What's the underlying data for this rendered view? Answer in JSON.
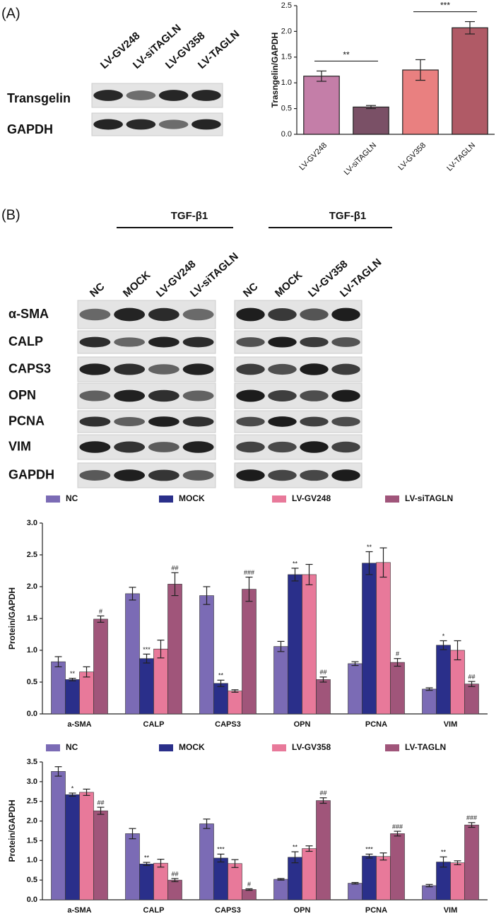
{
  "panel_labels": [
    "(A)",
    "(B)"
  ],
  "blot_a": {
    "lanes": [
      "LV-GV248",
      "LV-siTAGLN",
      "LV-GV358",
      "LV-TAGLN"
    ],
    "rows": [
      "Transgelin",
      "GAPDH"
    ]
  },
  "blot_b": {
    "treatment": [
      "TGF-β1",
      "TGF-β1"
    ],
    "lanes_left": [
      "NC",
      "MOCK",
      "LV-GV248",
      "LV-siTAGLN"
    ],
    "lanes_right": [
      "NC",
      "MOCK",
      "LV-GV358",
      "LV-TAGLN"
    ],
    "rows": [
      "α-SMA",
      "CALP",
      "CAPS3",
      "OPN",
      "PCNA",
      "VIM",
      "GAPDH"
    ]
  },
  "chart_data": [
    {
      "type": "bar",
      "y_label": "Trasngelin/GAPDH",
      "categories": [
        "LV-GV248",
        "LV-siTAGLN",
        "LV-GV358",
        "LV-TAGLN"
      ],
      "values": [
        1.13,
        0.53,
        1.25,
        2.07
      ],
      "errors": [
        0.1,
        0.03,
        0.2,
        0.12
      ],
      "colors": [
        "#c47ea8",
        "#7a5066",
        "#e98080",
        "#b05a66"
      ],
      "comparisons": [
        {
          "pair": [
            0,
            1
          ],
          "label": "**"
        },
        {
          "pair": [
            2,
            3
          ],
          "label": "***"
        }
      ],
      "ylim": [
        0,
        2.5
      ],
      "yticks": [
        {
          "value": 0,
          "label": "0.0"
        },
        0.5,
        {
          "value": 1,
          "label": "1.0"
        },
        1.5,
        {
          "value": 2,
          "label": "2.0"
        },
        2.5
      ]
    },
    {
      "type": "grouped-bar",
      "y_label": "Protein/GAPDH",
      "categories": [
        "a-SMA",
        "CALP",
        "CAPS3",
        "OPN",
        "PCNA",
        "VIM"
      ],
      "series": [
        {
          "name": "NC",
          "color": "#7b6bb5",
          "values": [
            0.82,
            1.89,
            1.86,
            1.06,
            0.79,
            0.39
          ],
          "errors": [
            0.08,
            0.1,
            0.14,
            0.08,
            0.03,
            0.02
          ],
          "annotations": [
            null,
            null,
            null,
            null,
            null,
            null
          ]
        },
        {
          "name": "MOCK",
          "color": "#2a2f8a",
          "values": [
            0.54,
            0.87,
            0.48,
            2.19,
            2.37,
            1.08
          ],
          "errors": [
            0.02,
            0.07,
            0.05,
            0.1,
            0.18,
            0.07
          ],
          "annotations": [
            "**",
            "***",
            "**",
            "**",
            "**",
            "*"
          ]
        },
        {
          "name": "LV-GV248",
          "color": "#e8799a",
          "values": [
            0.66,
            1.02,
            0.36,
            2.19,
            2.38,
            1.0
          ],
          "errors": [
            0.08,
            0.14,
            0.02,
            0.16,
            0.23,
            0.15
          ],
          "annotations": [
            null,
            null,
            null,
            null,
            null,
            null
          ]
        },
        {
          "name": "LV-siTAGLN",
          "color": "#a0557a",
          "values": [
            1.49,
            2.04,
            1.96,
            0.54,
            0.81,
            0.47
          ],
          "errors": [
            0.05,
            0.18,
            0.19,
            0.04,
            0.06,
            0.04
          ],
          "annotations": [
            "#",
            "##",
            "###",
            "##",
            "#",
            "##"
          ]
        }
      ],
      "ylim": [
        0,
        3
      ],
      "yticks": [
        {
          "value": 0,
          "label": "0.0"
        },
        0.5,
        {
          "value": 1,
          "label": "1.0"
        },
        1.5,
        {
          "value": 2,
          "label": "2.0"
        },
        2.5,
        {
          "value": 3,
          "label": "3.0"
        }
      ]
    },
    {
      "type": "grouped-bar",
      "y_label": "Protein/GAPDH",
      "categories": [
        "a-SMA",
        "CALP",
        "CAPS3",
        "OPN",
        "PCNA",
        "VIM"
      ],
      "series": [
        {
          "name": "NC",
          "color": "#7b6bb5",
          "values": [
            3.26,
            1.68,
            1.93,
            0.52,
            0.42,
            0.36
          ],
          "errors": [
            0.12,
            0.13,
            0.12,
            0.02,
            0.02,
            0.03
          ],
          "annotations": [
            null,
            null,
            null,
            null,
            null,
            null
          ]
        },
        {
          "name": "MOCK",
          "color": "#2a2f8a",
          "values": [
            2.67,
            0.91,
            1.06,
            1.08,
            1.11,
            0.96
          ],
          "errors": [
            0.04,
            0.04,
            0.1,
            0.14,
            0.05,
            0.13
          ],
          "annotations": [
            "*",
            "**",
            "***",
            "**",
            "***",
            "**"
          ]
        },
        {
          "name": "LV-GV358",
          "color": "#e8799a",
          "values": [
            2.73,
            0.93,
            0.92,
            1.3,
            1.1,
            0.94
          ],
          "errors": [
            0.08,
            0.1,
            0.1,
            0.07,
            0.09,
            0.05
          ],
          "annotations": [
            null,
            null,
            null,
            null,
            null,
            null
          ]
        },
        {
          "name": "LV-TAGLN",
          "color": "#a0557a",
          "values": [
            2.26,
            0.5,
            0.26,
            2.52,
            1.68,
            1.9
          ],
          "errors": [
            0.09,
            0.04,
            0.02,
            0.07,
            0.06,
            0.06
          ],
          "annotations": [
            "##",
            "##",
            "#",
            "##",
            "###",
            "###"
          ]
        }
      ],
      "ylim": [
        0,
        3.5
      ],
      "yticks": [
        {
          "value": 0,
          "label": "0.0"
        },
        0.5,
        {
          "value": 1,
          "label": "1.0"
        },
        1.5,
        {
          "value": 2,
          "label": "2.0"
        },
        2.5,
        {
          "value": 3,
          "label": "3.0"
        },
        3.5
      ]
    }
  ]
}
